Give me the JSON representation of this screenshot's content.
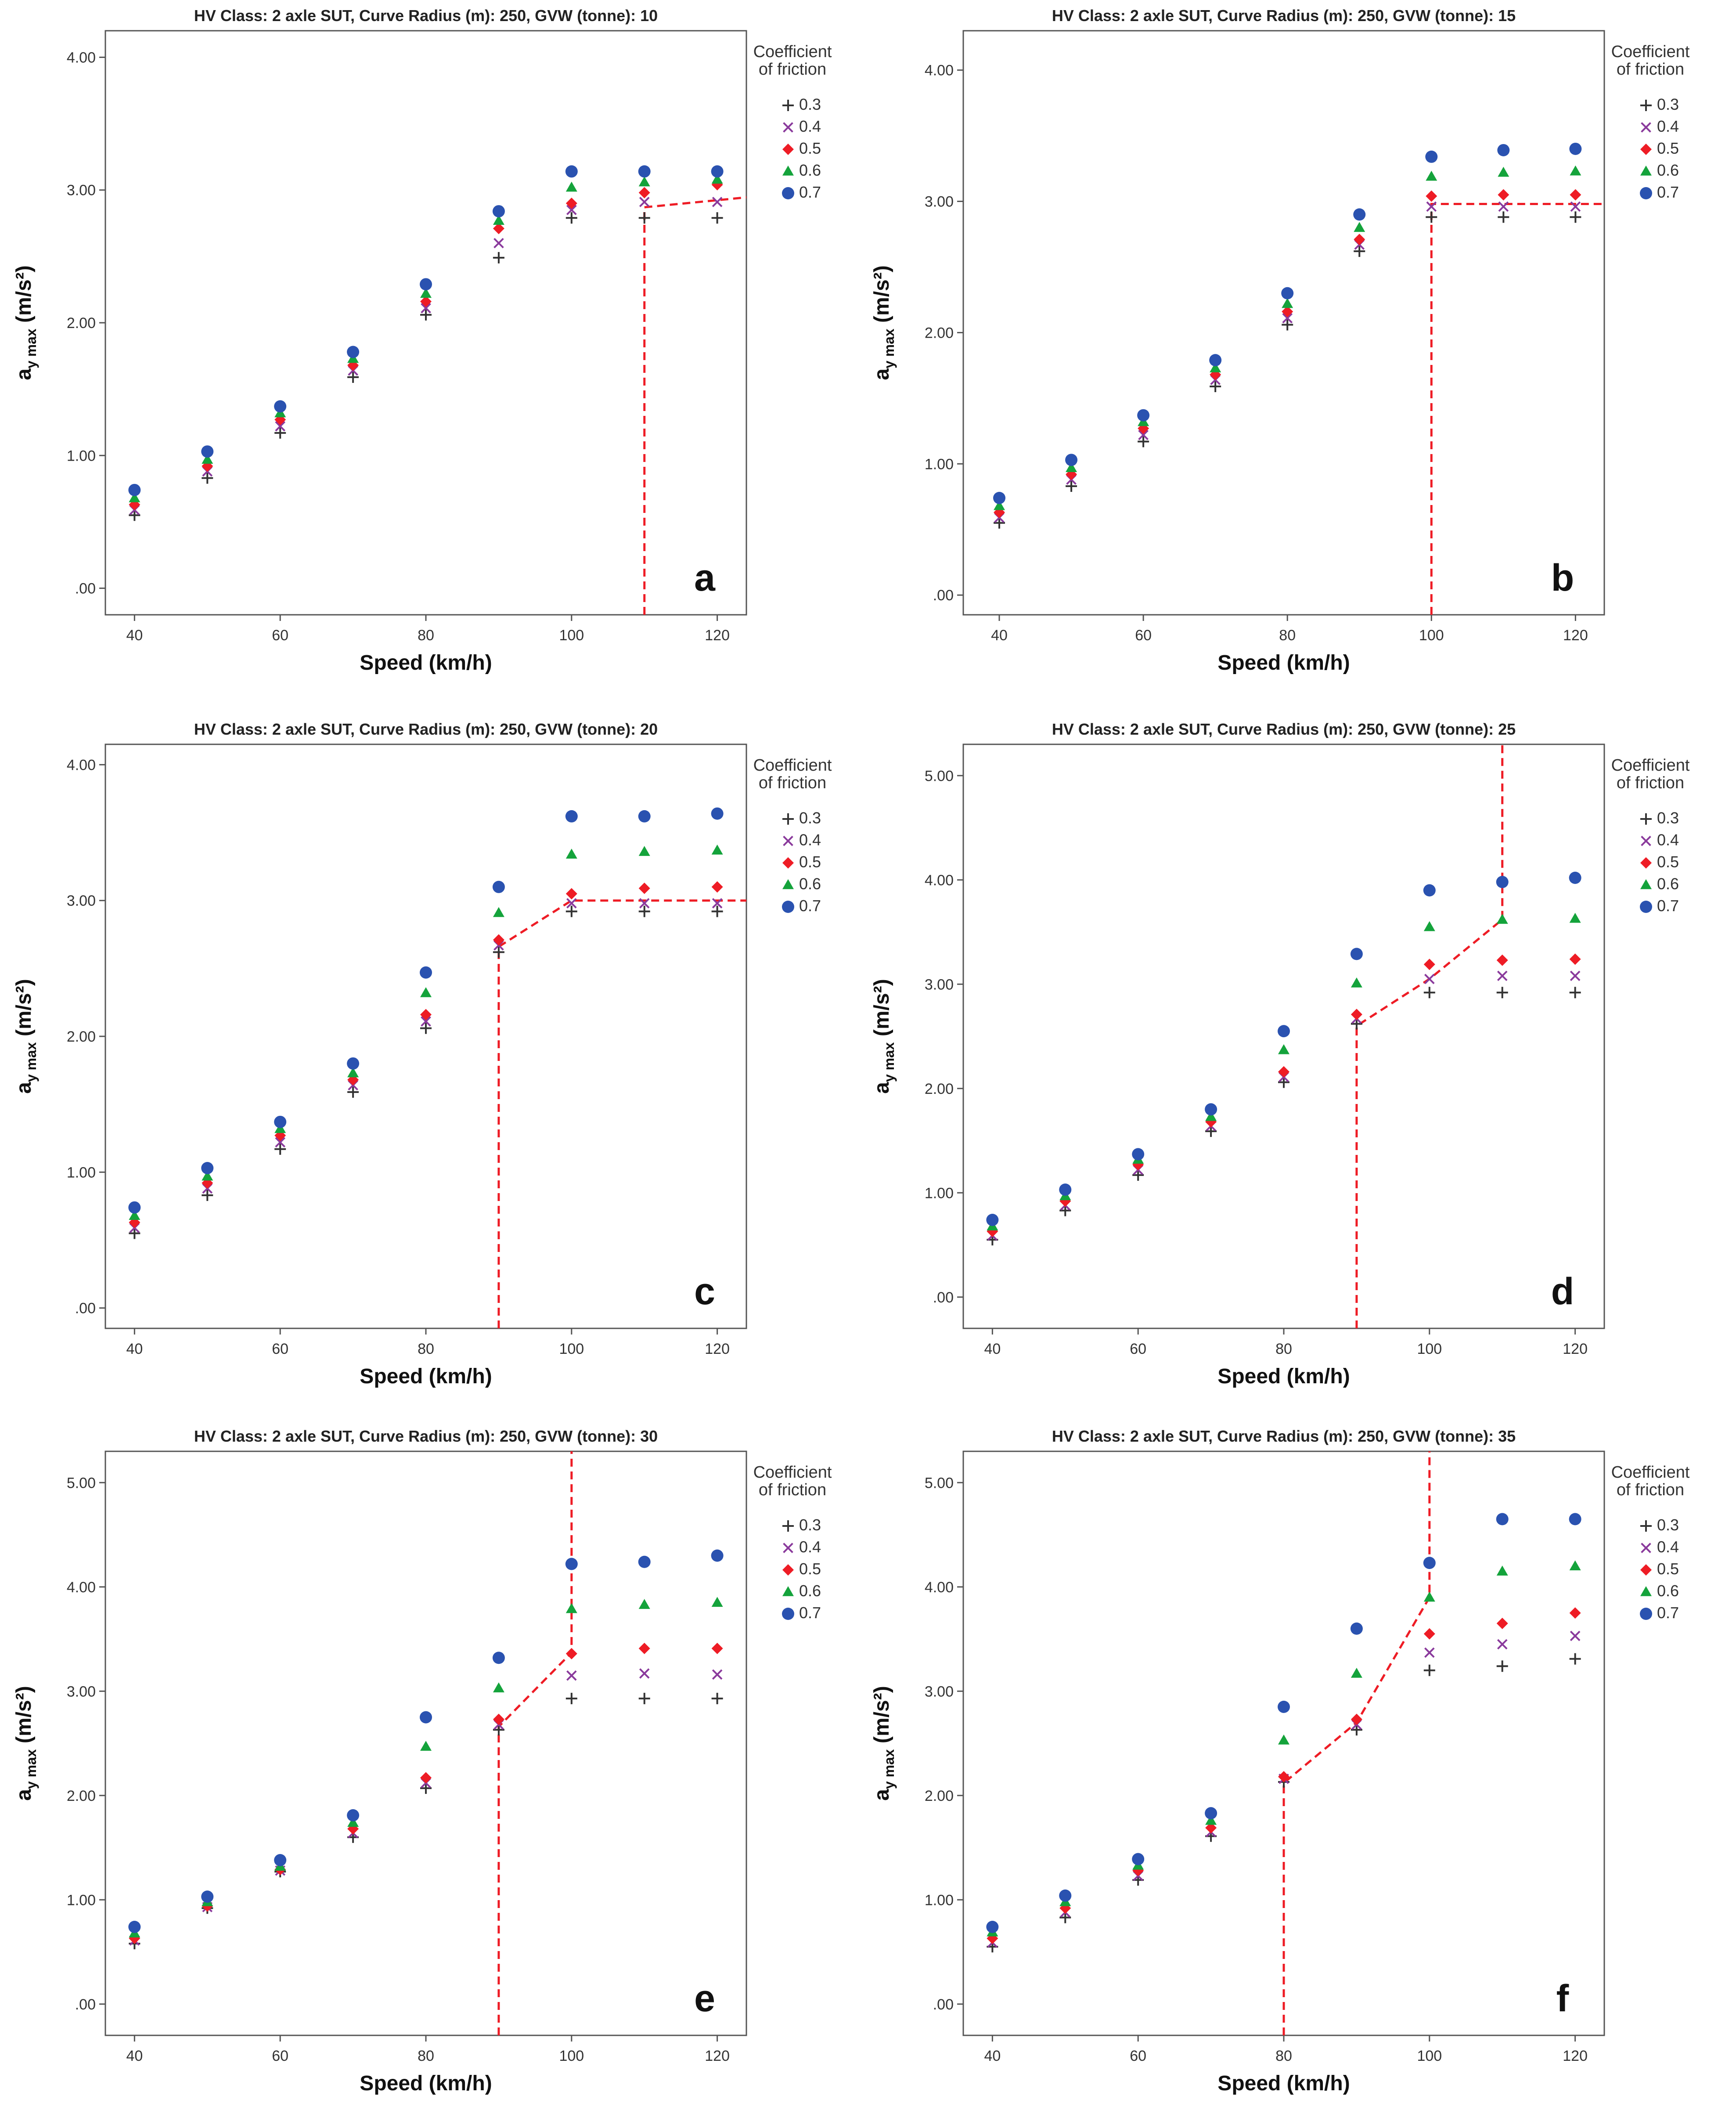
{
  "chart_data": [
    {
      "type": "scatter",
      "title": "HV Class: 2 axle SUT, Curve Radius (m): 250, GVW (tonne): 10",
      "xlabel": "Speed (km/h)",
      "ylabel": "a_y max (m/s²)",
      "xlim": [
        36,
        124
      ],
      "ylim": [
        -0.2,
        4.2
      ],
      "xticks": [
        "40",
        "60",
        "80",
        "100",
        "120"
      ],
      "yticks": [
        ".00",
        "1.00",
        "2.00",
        "3.00",
        "4.00"
      ],
      "legend_title": "Coefficient of friction",
      "panel_label": "a",
      "x": [
        40,
        50,
        60,
        70,
        80,
        90,
        100,
        110,
        120
      ],
      "series": [
        {
          "name": "0.3",
          "values": [
            0.55,
            0.83,
            1.17,
            1.59,
            2.06,
            2.49,
            2.79,
            2.79,
            2.79
          ]
        },
        {
          "name": "0.4",
          "values": [
            0.59,
            0.88,
            1.22,
            1.64,
            2.11,
            2.6,
            2.85,
            2.91,
            2.91
          ]
        },
        {
          "name": "0.5",
          "values": [
            0.63,
            0.92,
            1.27,
            1.68,
            2.16,
            2.71,
            2.9,
            2.98,
            3.04
          ]
        },
        {
          "name": "0.6",
          "values": [
            0.68,
            0.97,
            1.32,
            1.73,
            2.22,
            2.77,
            3.02,
            3.06,
            3.08
          ]
        },
        {
          "name": "0.7",
          "values": [
            0.74,
            1.03,
            1.37,
            1.78,
            2.29,
            2.84,
            3.14,
            3.14,
            3.14
          ]
        }
      ],
      "threshold_line": [
        [
          110,
          -0.2
        ],
        [
          110,
          2.87
        ],
        [
          125,
          2.95
        ]
      ]
    },
    {
      "type": "scatter",
      "title": "HV Class: 2 axle SUT, Curve Radius (m): 250, GVW (tonne): 15",
      "xlabel": "Speed (km/h)",
      "ylabel": "a_y max (m/s²)",
      "xlim": [
        35,
        124
      ],
      "ylim": [
        -0.15,
        4.3
      ],
      "xticks": [
        "40",
        "60",
        "80",
        "100",
        "120"
      ],
      "yticks": [
        ".00",
        "1.00",
        "2.00",
        "3.00",
        "4.00"
      ],
      "legend_title": "Coefficient of friction",
      "panel_label": "b",
      "x": [
        40,
        50,
        60,
        70,
        80,
        90,
        100,
        110,
        120
      ],
      "series": [
        {
          "name": "0.3",
          "values": [
            0.55,
            0.83,
            1.17,
            1.59,
            2.06,
            2.62,
            2.88,
            2.88,
            2.88
          ]
        },
        {
          "name": "0.4",
          "values": [
            0.59,
            0.88,
            1.22,
            1.64,
            2.11,
            2.67,
            2.96,
            2.96,
            2.96
          ]
        },
        {
          "name": "0.5",
          "values": [
            0.63,
            0.92,
            1.27,
            1.68,
            2.16,
            2.71,
            3.04,
            3.05,
            3.05
          ]
        },
        {
          "name": "0.6",
          "values": [
            0.68,
            0.97,
            1.32,
            1.73,
            2.22,
            2.8,
            3.19,
            3.22,
            3.23
          ]
        },
        {
          "name": "0.7",
          "values": [
            0.74,
            1.03,
            1.37,
            1.79,
            2.3,
            2.9,
            3.34,
            3.39,
            3.4
          ]
        }
      ],
      "threshold_line": [
        [
          100,
          -0.15
        ],
        [
          100,
          2.98
        ],
        [
          124,
          2.98
        ]
      ]
    },
    {
      "type": "scatter",
      "title": "HV Class: 2 axle SUT, Curve Radius (m): 250, GVW (tonne): 20",
      "xlabel": "Speed (km/h)",
      "ylabel": "a_y max (m/s²)",
      "xlim": [
        36,
        124
      ],
      "ylim": [
        -0.15,
        4.15
      ],
      "xticks": [
        "40",
        "60",
        "80",
        "100",
        "120"
      ],
      "yticks": [
        ".00",
        "1.00",
        "2.00",
        "3.00",
        "4.00"
      ],
      "legend_title": "Coefficient of friction",
      "panel_label": "c",
      "x": [
        40,
        50,
        60,
        70,
        80,
        90,
        100,
        110,
        120
      ],
      "series": [
        {
          "name": "0.3",
          "values": [
            0.55,
            0.83,
            1.17,
            1.59,
            2.06,
            2.62,
            2.92,
            2.92,
            2.92
          ]
        },
        {
          "name": "0.4",
          "values": [
            0.59,
            0.88,
            1.22,
            1.64,
            2.11,
            2.67,
            2.98,
            2.98,
            2.98
          ]
        },
        {
          "name": "0.5",
          "values": [
            0.63,
            0.92,
            1.27,
            1.68,
            2.16,
            2.71,
            3.05,
            3.09,
            3.1
          ]
        },
        {
          "name": "0.6",
          "values": [
            0.68,
            0.97,
            1.32,
            1.73,
            2.32,
            2.91,
            3.34,
            3.36,
            3.37
          ]
        },
        {
          "name": "0.7",
          "values": [
            0.74,
            1.03,
            1.37,
            1.8,
            2.47,
            3.1,
            3.62,
            3.62,
            3.64
          ]
        }
      ],
      "threshold_line": [
        [
          90,
          -0.15
        ],
        [
          90,
          2.66
        ],
        [
          100,
          3.0
        ],
        [
          124,
          3.0
        ]
      ]
    },
    {
      "type": "scatter",
      "title": "HV Class: 2 axle SUT, Curve Radius (m): 250, GVW (tonne): 25",
      "xlabel": "Speed (km/h)",
      "ylabel": "a_y max (m/s²)",
      "xlim": [
        36,
        124
      ],
      "ylim": [
        -0.3,
        5.3
      ],
      "xticks": [
        "40",
        "60",
        "80",
        "100",
        "120"
      ],
      "yticks": [
        ".00",
        "1.00",
        "2.00",
        "3.00",
        "4.00",
        "5.00"
      ],
      "legend_title": "Coefficient of friction",
      "panel_label": "d",
      "x": [
        40,
        50,
        60,
        70,
        80,
        90,
        100,
        110,
        120
      ],
      "series": [
        {
          "name": "0.3",
          "values": [
            0.55,
            0.83,
            1.17,
            1.59,
            2.06,
            2.62,
            2.92,
            2.92,
            2.92
          ]
        },
        {
          "name": "0.4",
          "values": [
            0.59,
            0.88,
            1.22,
            1.64,
            2.11,
            2.67,
            3.05,
            3.08,
            3.08
          ]
        },
        {
          "name": "0.5",
          "values": [
            0.63,
            0.92,
            1.27,
            1.68,
            2.16,
            2.71,
            3.19,
            3.23,
            3.24
          ]
        },
        {
          "name": "0.6",
          "values": [
            0.68,
            0.97,
            1.32,
            1.73,
            2.37,
            3.01,
            3.55,
            3.62,
            3.63
          ]
        },
        {
          "name": "0.7",
          "values": [
            0.74,
            1.03,
            1.37,
            1.8,
            2.55,
            3.29,
            3.9,
            3.98,
            4.02
          ]
        }
      ],
      "threshold_line": [
        [
          90,
          -0.3
        ],
        [
          90,
          2.6
        ],
        [
          100,
          3.05
        ],
        [
          110,
          3.62
        ],
        [
          110,
          5.3
        ]
      ]
    },
    {
      "type": "scatter",
      "title": "HV Class: 2 axle SUT, Curve Radius (m): 250, GVW (tonne): 30",
      "xlabel": "Speed (km/h)",
      "ylabel": "a_y max (m/s²)",
      "xlim": [
        36,
        124
      ],
      "ylim": [
        -0.3,
        5.3
      ],
      "xticks": [
        "40",
        "60",
        "80",
        "100",
        "120"
      ],
      "yticks": [
        ".00",
        "1.00",
        "2.00",
        "3.00",
        "4.00",
        "5.00"
      ],
      "legend_title": "Coefficient of friction",
      "panel_label": "e",
      "x": [
        40,
        50,
        60,
        70,
        80,
        90,
        100,
        110,
        120
      ],
      "series": [
        {
          "name": "0.3",
          "values": [
            0.58,
            0.92,
            1.27,
            1.6,
            2.07,
            2.63,
            2.93,
            2.93,
            2.93
          ]
        },
        {
          "name": "0.4",
          "values": [
            0.61,
            0.93,
            1.28,
            1.64,
            2.12,
            2.68,
            3.15,
            3.17,
            3.16
          ]
        },
        {
          "name": "0.5",
          "values": [
            0.63,
            0.94,
            1.29,
            1.68,
            2.17,
            2.73,
            3.36,
            3.41,
            3.41
          ]
        },
        {
          "name": "0.6",
          "values": [
            0.68,
            0.98,
            1.32,
            1.74,
            2.47,
            3.03,
            3.79,
            3.83,
            3.85
          ]
        },
        {
          "name": "0.7",
          "values": [
            0.74,
            1.03,
            1.38,
            1.81,
            2.75,
            3.32,
            4.22,
            4.24,
            4.3
          ]
        }
      ],
      "threshold_line": [
        [
          90,
          -0.3
        ],
        [
          90,
          2.66
        ],
        [
          100,
          3.37
        ],
        [
          100,
          5.3
        ]
      ]
    },
    {
      "type": "scatter",
      "title": "HV Class: 2 axle SUT, Curve Radius (m): 250, GVW (tonne): 35",
      "xlabel": "Speed (km/h)",
      "ylabel": "a_y max (m/s²)",
      "xlim": [
        36,
        124
      ],
      "ylim": [
        -0.3,
        5.3
      ],
      "xticks": [
        "40",
        "60",
        "80",
        "100",
        "120"
      ],
      "yticks": [
        ".00",
        "1.00",
        "2.00",
        "3.00",
        "4.00",
        "5.00"
      ],
      "legend_title": "Coefficient of friction",
      "panel_label": "f",
      "x": [
        40,
        50,
        60,
        70,
        80,
        90,
        100,
        110,
        120
      ],
      "series": [
        {
          "name": "0.3",
          "values": [
            0.55,
            0.83,
            1.19,
            1.61,
            2.13,
            2.63,
            3.2,
            3.24,
            3.31
          ]
        },
        {
          "name": "0.4",
          "values": [
            0.59,
            0.88,
            1.23,
            1.65,
            2.16,
            2.68,
            3.37,
            3.45,
            3.53
          ]
        },
        {
          "name": "0.5",
          "values": [
            0.63,
            0.92,
            1.28,
            1.69,
            2.18,
            2.73,
            3.55,
            3.65,
            3.75
          ]
        },
        {
          "name": "0.6",
          "values": [
            0.69,
            0.98,
            1.33,
            1.76,
            2.53,
            3.17,
            3.9,
            4.15,
            4.2
          ]
        },
        {
          "name": "0.7",
          "values": [
            0.74,
            1.04,
            1.39,
            1.83,
            2.85,
            3.6,
            4.23,
            4.65,
            4.65
          ]
        }
      ],
      "threshold_line": [
        [
          80,
          -0.3
        ],
        [
          80,
          2.12
        ],
        [
          90,
          2.7
        ],
        [
          100,
          3.9
        ],
        [
          100,
          5.3
        ]
      ]
    }
  ],
  "colors": {
    "0.3": "#333333",
    "0.4": "#8a3a9c",
    "0.5": "#ee1c25",
    "0.6": "#14a33b",
    "0.7": "#2a52b0",
    "threshold": "#ee1c25"
  },
  "markers": {
    "0.3": "plus",
    "0.4": "cross",
    "0.5": "diamond",
    "0.6": "triangle",
    "0.7": "circle"
  }
}
